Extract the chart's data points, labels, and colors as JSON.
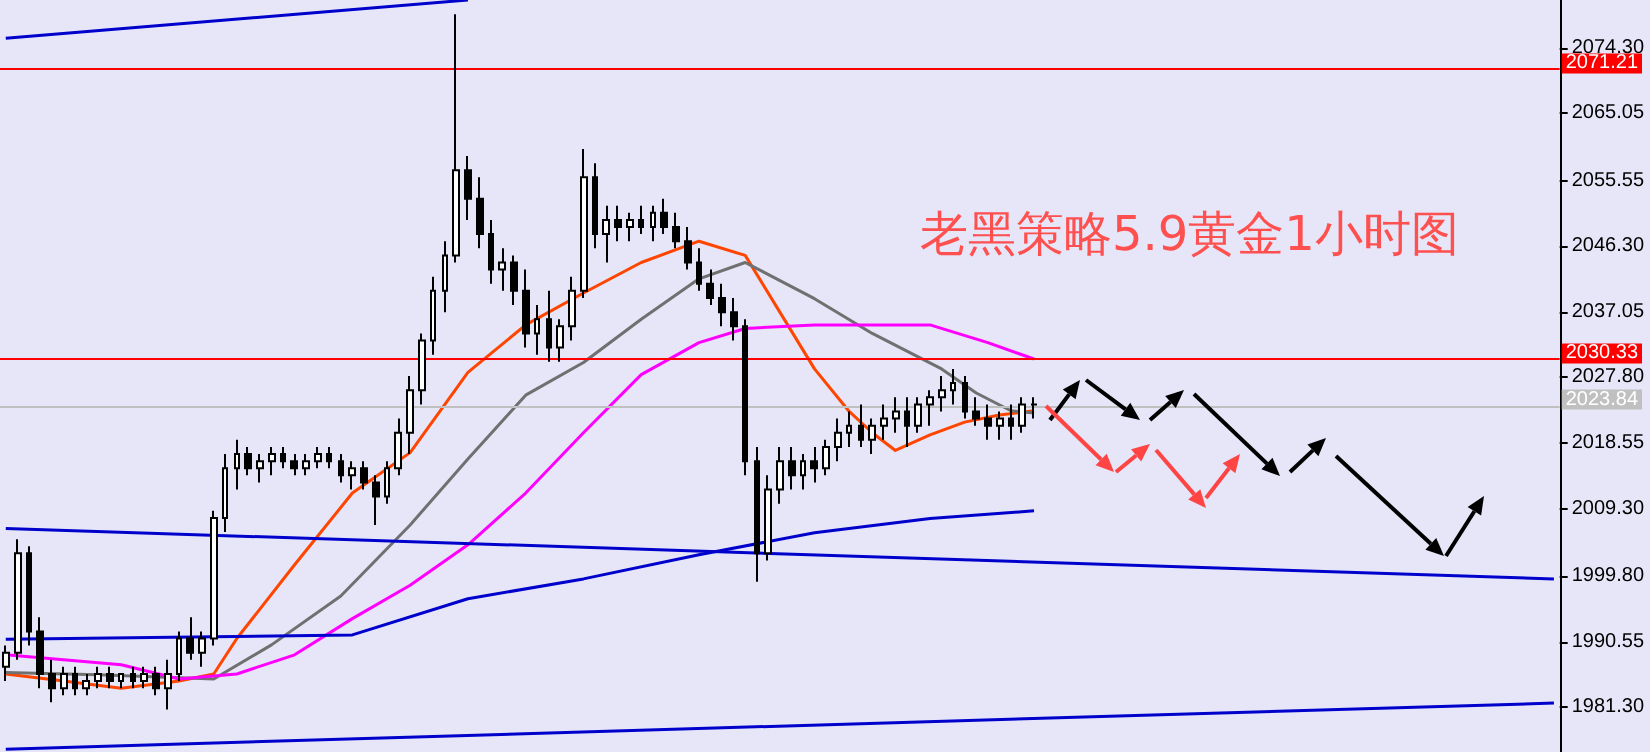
{
  "chart_data": {
    "type": "candlestick",
    "title": "老黑策略5.9黄金1小时图",
    "categories": [
      null,
      null,
      null,
      null,
      null,
      null,
      null,
      null,
      null,
      null,
      null,
      null,
      null,
      null,
      null,
      null,
      null,
      null,
      null,
      null,
      null,
      null,
      null,
      null,
      null,
      null,
      null,
      null,
      null,
      null,
      null,
      null,
      null,
      null,
      null,
      null,
      null,
      null,
      null,
      null,
      null,
      null,
      null,
      null,
      null,
      null,
      null,
      null,
      null,
      null,
      null,
      null,
      null,
      null,
      null,
      null,
      null,
      null,
      null,
      null,
      null,
      null,
      null,
      null,
      null,
      null,
      null,
      null,
      null,
      null,
      null,
      null,
      null,
      null,
      null,
      null,
      null,
      null,
      null,
      null,
      null,
      null,
      null,
      null,
      null,
      null,
      null,
      null,
      null,
      null,
      null,
      null,
      null,
      null,
      null,
      null,
      null,
      null,
      null,
      null,
      null,
      null,
      null,
      null,
      null,
      null,
      null,
      null,
      null,
      null,
      null,
      null,
      null,
      null,
      null,
      null,
      null,
      null,
      null,
      null,
      null,
      null,
      null,
      null,
      null,
      null,
      null,
      null,
      null,
      null,
      null,
      null,
      null,
      null,
      null
    ],
    "ohlc": [
      [
        1987,
        1990,
        1985,
        1989
      ],
      [
        1989,
        2005,
        1988,
        2003
      ],
      [
        2003,
        2004,
        1990,
        1992
      ],
      [
        1992,
        1994,
        1984,
        1986
      ],
      [
        1986,
        1988,
        1982,
        1984
      ],
      [
        1984,
        1987,
        1983,
        1986
      ],
      [
        1986,
        1987,
        1983,
        1984
      ],
      [
        1984,
        1986,
        1983,
        1985
      ],
      [
        1985,
        1987,
        1984,
        1986
      ],
      [
        1986,
        1987,
        1984,
        1985
      ],
      [
        1985,
        1986,
        1984,
        1986
      ],
      [
        1986,
        1987,
        1984,
        1985
      ],
      [
        1985,
        1987,
        1984,
        1986
      ],
      [
        1986,
        1987,
        1983,
        1984
      ],
      [
        1984,
        1988,
        1981,
        1986
      ],
      [
        1986,
        1992,
        1985,
        1991
      ],
      [
        1991,
        1994,
        1988,
        1989
      ],
      [
        1989,
        1992,
        1987,
        1991
      ],
      [
        1991,
        2009,
        1990,
        2008
      ],
      [
        2008,
        2017,
        2006,
        2015
      ],
      [
        2015,
        2019,
        2012,
        2017
      ],
      [
        2017,
        2018,
        2014,
        2015
      ],
      [
        2015,
        2017,
        2013,
        2016
      ],
      [
        2016,
        2018,
        2014,
        2017
      ],
      [
        2017,
        2018,
        2015,
        2016
      ],
      [
        2016,
        2017,
        2014,
        2015
      ],
      [
        2015,
        2017,
        2014,
        2016
      ],
      [
        2016,
        2018,
        2015,
        2017
      ],
      [
        2017,
        2018,
        2015,
        2016
      ],
      [
        2016,
        2017,
        2013,
        2014
      ],
      [
        2014,
        2016,
        2012,
        2015
      ],
      [
        2015,
        2016,
        2012,
        2013
      ],
      [
        2013,
        2014,
        2007,
        2011
      ],
      [
        2011,
        2016,
        2010,
        2015
      ],
      [
        2015,
        2022,
        2014,
        2020
      ],
      [
        2020,
        2028,
        2017,
        2026
      ],
      [
        2026,
        2034,
        2024,
        2033
      ],
      [
        2033,
        2042,
        2031,
        2040
      ],
      [
        2040,
        2047,
        2037,
        2045
      ],
      [
        2045,
        2079,
        2044,
        2057
      ],
      [
        2057,
        2059,
        2050,
        2053
      ],
      [
        2053,
        2056,
        2046,
        2048
      ],
      [
        2048,
        2050,
        2041,
        2043
      ],
      [
        2043,
        2046,
        2040,
        2044
      ],
      [
        2044,
        2045,
        2038,
        2040
      ],
      [
        2040,
        2043,
        2032,
        2034
      ],
      [
        2034,
        2038,
        2031,
        2036
      ],
      [
        2036,
        2040,
        2030,
        2032
      ],
      [
        2032,
        2036,
        2030,
        2035
      ],
      [
        2035,
        2042,
        2033,
        2040
      ],
      [
        2040,
        2060,
        2039,
        2056
      ],
      [
        2056,
        2058,
        2046,
        2048
      ],
      [
        2048,
        2052,
        2044,
        2050
      ],
      [
        2050,
        2052,
        2047,
        2049
      ],
      [
        2049,
        2051,
        2047,
        2050
      ],
      [
        2050,
        2052,
        2048,
        2049
      ],
      [
        2049,
        2052,
        2047,
        2051
      ],
      [
        2051,
        2053,
        2048,
        2049
      ],
      [
        2049,
        2051,
        2046,
        2047
      ],
      [
        2047,
        2049,
        2043,
        2044
      ],
      [
        2044,
        2046,
        2040,
        2041
      ],
      [
        2041,
        2043,
        2038,
        2039
      ],
      [
        2039,
        2041,
        2035,
        2037
      ],
      [
        2037,
        2039,
        2033,
        2035
      ],
      [
        2035,
        2036,
        2014,
        2016
      ],
      [
        2016,
        2018,
        1999,
        2003
      ],
      [
        2003,
        2014,
        2002,
        2012
      ],
      [
        2012,
        2018,
        2010,
        2016
      ],
      [
        2016,
        2018,
        2012,
        2014
      ],
      [
        2014,
        2017,
        2012,
        2016
      ],
      [
        2016,
        2018,
        2013,
        2015
      ],
      [
        2015,
        2019,
        2014,
        2018
      ],
      [
        2018,
        2022,
        2016,
        2020
      ],
      [
        2020,
        2023,
        2018,
        2021
      ],
      [
        2021,
        2024,
        2018,
        2019
      ],
      [
        2019,
        2022,
        2017,
        2021
      ],
      [
        2021,
        2024,
        2019,
        2022
      ],
      [
        2022,
        2025,
        2020,
        2023
      ],
      [
        2023,
        2025,
        2018,
        2021
      ],
      [
        2021,
        2025,
        2020,
        2024
      ],
      [
        2024,
        2026,
        2021,
        2025
      ],
      [
        2025,
        2028,
        2023,
        2026
      ],
      [
        2026,
        2029,
        2024,
        2027
      ],
      [
        2027,
        2028,
        2022,
        2023
      ],
      [
        2023,
        2025,
        2021,
        2022
      ],
      [
        2022,
        2024,
        2019,
        2021
      ],
      [
        2021,
        2023,
        2019,
        2022
      ],
      [
        2022,
        2024,
        2019,
        2021
      ],
      [
        2021,
        2025,
        2020,
        2024
      ],
      [
        2024,
        2025,
        2022,
        2024
      ],
      null,
      null,
      null,
      null,
      null,
      null,
      null,
      null,
      null,
      null,
      null,
      null,
      null,
      null,
      null,
      null,
      null,
      null,
      null,
      null,
      null,
      null,
      null,
      null,
      null,
      null,
      null,
      null,
      null,
      null,
      null,
      null,
      null,
      null,
      null,
      null,
      null,
      null,
      null,
      null,
      null,
      null,
      null,
      null,
      null
    ],
    "series": [
      {
        "type": "line",
        "color": "#ff4500",
        "values": [
          1986,
          null,
          null,
          null,
          null,
          1985,
          null,
          null,
          null,
          null,
          1984,
          null,
          null,
          null,
          null,
          1985,
          null,
          null,
          1986,
          null,
          1991,
          null,
          null,
          null,
          null,
          2001.4,
          null,
          null,
          null,
          null,
          2011.5,
          null,
          null,
          null,
          null,
          2017.2,
          null,
          null,
          null,
          null,
          2028.5,
          null,
          null,
          null,
          null,
          2035.2,
          null,
          null,
          null,
          null,
          2039.7,
          null,
          null,
          null,
          null,
          2044,
          null,
          null,
          null,
          null,
          2047,
          null,
          null,
          null,
          2045,
          null,
          null,
          2037,
          null,
          null,
          2029,
          null,
          null,
          2023,
          null,
          2020,
          null,
          2017.5,
          null,
          null,
          2019.7,
          null,
          null,
          2021.5,
          null,
          null,
          2022.5,
          null,
          null,
          2023.1,
          null,
          null,
          null,
          null,
          null,
          null,
          null,
          null,
          null,
          null,
          null,
          null,
          null,
          null,
          null,
          null,
          null,
          null,
          null,
          null,
          null,
          null,
          null,
          null,
          null,
          null,
          null,
          null,
          null,
          null,
          null,
          null,
          null,
          null,
          null,
          null,
          null,
          null,
          null,
          null,
          null,
          null,
          null,
          null,
          null
        ]
      },
      {
        "type": "line",
        "color": "#707070",
        "values": [
          1986.2,
          null,
          null,
          null,
          null,
          null,
          null,
          null,
          1985.9,
          null,
          null,
          null,
          null,
          null,
          null,
          null,
          null,
          null,
          1985.3,
          null,
          null,
          null,
          null,
          1990.1,
          null,
          null,
          null,
          null,
          null,
          1997,
          null,
          null,
          null,
          null,
          null,
          2007,
          null,
          null,
          null,
          null,
          2016.3,
          null,
          null,
          null,
          null,
          2025.3,
          null,
          null,
          null,
          null,
          2029.9,
          null,
          null,
          null,
          null,
          2036,
          null,
          null,
          null,
          null,
          2041.7,
          null,
          null,
          null,
          2044,
          null,
          null,
          null,
          null,
          null,
          2038.9,
          null,
          null,
          null,
          null,
          2034,
          null,
          null,
          null,
          null,
          null,
          2029,
          null,
          null,
          2025.6,
          null,
          null,
          2023.1,
          null,
          2022.8,
          null,
          null,
          null,
          null,
          null,
          null,
          null,
          null,
          null,
          null,
          null,
          null,
          null,
          null,
          null,
          null,
          null,
          null,
          null,
          null,
          null,
          null,
          null,
          null,
          null,
          null,
          null,
          null,
          null,
          null,
          null,
          null,
          null,
          null,
          null,
          null,
          null,
          null,
          null,
          null,
          null,
          null,
          null,
          null,
          null
        ]
      },
      {
        "type": "line",
        "color": "#ff00ff",
        "values": [
          1988.7,
          null,
          null,
          null,
          null,
          null,
          null,
          null,
          null,
          null,
          1987.3,
          null,
          null,
          null,
          null,
          1985.3,
          null,
          null,
          null,
          null,
          1986,
          null,
          null,
          null,
          null,
          1988.7,
          null,
          null,
          null,
          null,
          1993.8,
          null,
          null,
          null,
          null,
          1998.5,
          null,
          null,
          null,
          null,
          2004.2,
          null,
          null,
          null,
          null,
          2011.5,
          null,
          null,
          null,
          null,
          2020,
          null,
          null,
          null,
          null,
          2028.2,
          null,
          null,
          null,
          null,
          2032.7,
          null,
          null,
          null,
          2034.7,
          null,
          null,
          null,
          null,
          null,
          2035.2,
          null,
          null,
          null,
          null,
          2035.2,
          null,
          null,
          null,
          null,
          2035.2,
          null,
          null,
          null,
          null,
          2032.7,
          null,
          null,
          null,
          2030.4,
          null,
          null,
          null,
          null,
          null,
          null,
          null,
          null,
          null,
          null,
          null,
          null,
          null,
          null,
          null,
          null,
          null,
          null,
          null,
          null,
          null,
          null,
          null,
          null,
          null,
          null,
          null,
          null,
          null,
          null,
          null,
          null,
          null,
          null,
          null,
          null,
          null,
          null,
          null,
          null,
          null,
          null,
          null,
          null,
          null
        ]
      },
      {
        "type": "line",
        "color": "#0000cc",
        "values": [
          2075.6,
          null,
          null,
          null,
          null,
          null,
          null,
          null,
          null,
          null,
          null,
          null,
          null,
          null,
          null,
          null,
          null,
          null,
          null,
          null,
          null,
          null,
          null,
          null,
          null,
          null,
          null,
          null,
          null,
          null,
          null,
          null,
          null,
          null,
          null,
          null,
          null,
          null,
          null,
          null,
          2081,
          null,
          null,
          null,
          null,
          null,
          null,
          null,
          null,
          null,
          null,
          null,
          null,
          null,
          null,
          null,
          null,
          null,
          null,
          null,
          null,
          null,
          null,
          null,
          null,
          null,
          null,
          null,
          null,
          null,
          null,
          null,
          null,
          null,
          null,
          null,
          null,
          null,
          null,
          null,
          null,
          null,
          null,
          null,
          null,
          null,
          null,
          null,
          null,
          null,
          null,
          null,
          null,
          null,
          null,
          null,
          null,
          null,
          null,
          null,
          null,
          null,
          null,
          null,
          null,
          null,
          null,
          null,
          null,
          null,
          null,
          null,
          null,
          null,
          null,
          null,
          null,
          null,
          null,
          null,
          null,
          null,
          null,
          null,
          null,
          null,
          null,
          null,
          null,
          null,
          null,
          null,
          null,
          null,
          null
        ]
      },
      {
        "type": "line",
        "color": "#0000cc",
        "values": [
          2006.5,
          null,
          null,
          null,
          null,
          null,
          null,
          null,
          null,
          null,
          null,
          null,
          null,
          null,
          null,
          null,
          null,
          null,
          null,
          null,
          null,
          null,
          null,
          null,
          null,
          null,
          null,
          null,
          null,
          null,
          null,
          null,
          null,
          null,
          null,
          null,
          null,
          null,
          null,
          null,
          null,
          null,
          null,
          null,
          null,
          null,
          null,
          null,
          null,
          null,
          null,
          null,
          null,
          null,
          null,
          null,
          null,
          null,
          null,
          null,
          null,
          null,
          null,
          null,
          null,
          null,
          null,
          null,
          null,
          null,
          null,
          null,
          null,
          null,
          null,
          null,
          null,
          null,
          null,
          null,
          null,
          null,
          null,
          null,
          null,
          null,
          null,
          null,
          null,
          null,
          null,
          null,
          null,
          null,
          null,
          null,
          null,
          null,
          null,
          null,
          null,
          null,
          null,
          null,
          null,
          null,
          null,
          null,
          null,
          null,
          null,
          null,
          null,
          null,
          null,
          null,
          null,
          null,
          null,
          null,
          null,
          null,
          null,
          null,
          null,
          null,
          null,
          null,
          null,
          null,
          null,
          null,
          null,
          null,
          1999.4
        ]
      },
      {
        "type": "line",
        "color": "#0000cc",
        "values": [
          1990.9,
          null,
          null,
          null,
          null,
          null,
          null,
          null,
          null,
          null,
          null,
          null,
          null,
          null,
          null,
          null,
          null,
          null,
          null,
          null,
          null,
          null,
          null,
          null,
          null,
          null,
          null,
          null,
          null,
          null,
          1991.5,
          null,
          null,
          null,
          null,
          null,
          null,
          null,
          null,
          null,
          1996.6,
          null,
          null,
          null,
          null,
          null,
          null,
          null,
          null,
          null,
          1999.4,
          null,
          null,
          null,
          null,
          null,
          null,
          null,
          null,
          null,
          2002.8,
          null,
          null,
          null,
          null,
          null,
          null,
          null,
          null,
          null,
          2005.9,
          null,
          null,
          null,
          null,
          null,
          null,
          null,
          null,
          null,
          2007.9,
          null,
          null,
          null,
          null,
          null,
          null,
          null,
          null,
          2009,
          null,
          null,
          null,
          null,
          null,
          null,
          null,
          null,
          null,
          null,
          null,
          null,
          null,
          null,
          null,
          null,
          null,
          null,
          null,
          null,
          null,
          null,
          null,
          null,
          null,
          null,
          null,
          null,
          null,
          null,
          null,
          null,
          null,
          null,
          null,
          null,
          null,
          null,
          null,
          null,
          null,
          null,
          null,
          null,
          null
        ]
      },
      {
        "type": "line",
        "color": "#0000cc",
        "values": [
          1975.4,
          null,
          null,
          null,
          null,
          null,
          null,
          null,
          null,
          null,
          null,
          null,
          null,
          null,
          null,
          null,
          null,
          null,
          null,
          null,
          null,
          null,
          null,
          null,
          null,
          null,
          null,
          null,
          null,
          null,
          null,
          null,
          null,
          null,
          null,
          null,
          null,
          null,
          null,
          null,
          null,
          null,
          null,
          null,
          null,
          null,
          null,
          null,
          null,
          null,
          null,
          null,
          null,
          null,
          null,
          null,
          null,
          null,
          null,
          null,
          null,
          null,
          null,
          null,
          null,
          null,
          null,
          null,
          null,
          null,
          null,
          null,
          null,
          null,
          null,
          null,
          null,
          null,
          null,
          null,
          null,
          null,
          null,
          null,
          null,
          null,
          null,
          null,
          null,
          null,
          null,
          null,
          null,
          null,
          null,
          null,
          null,
          null,
          null,
          null,
          null,
          null,
          null,
          null,
          null,
          null,
          null,
          null,
          null,
          null,
          null,
          null,
          null,
          null,
          null,
          null,
          null,
          null,
          null,
          null,
          null,
          null,
          null,
          null,
          null,
          null,
          null,
          null,
          null,
          null,
          null,
          null,
          null,
          null,
          1981.9
        ]
      }
    ],
    "ylim": [
      1975,
      2081
    ],
    "yticks": [
      {
        "value": 1981.3,
        "label": "1981.30"
      },
      {
        "value": 1990.55,
        "label": "1990.55"
      },
      {
        "value": 1999.8,
        "label": "1999.80"
      },
      {
        "value": 2009.3,
        "label": "2009.30"
      },
      {
        "value": 2018.55,
        "label": "2018.55"
      },
      {
        "value": 2027.8,
        "label": "2027.80"
      },
      {
        "value": 2037.05,
        "label": "2037.05"
      },
      {
        "value": 2046.3,
        "label": "2046.30"
      },
      {
        "value": 2055.55,
        "label": "2055.55"
      },
      {
        "value": 2065.05,
        "label": "2065.05"
      },
      {
        "value": 2074.3,
        "label": "2074.30"
      }
    ],
    "ref_lines": [
      {
        "axis": "y",
        "value": 2071.21,
        "label": "2071.21",
        "color": "#ff0000"
      },
      {
        "axis": "y",
        "value": 2030.33,
        "label": "2030.33",
        "color": "#ff0000"
      },
      {
        "axis": "y",
        "value": 2023.84,
        "label": "2023.84",
        "color": "#c0c0c0"
      }
    ],
    "tick_labels": "y",
    "line_style": "solid",
    "grid": false
  }
}
